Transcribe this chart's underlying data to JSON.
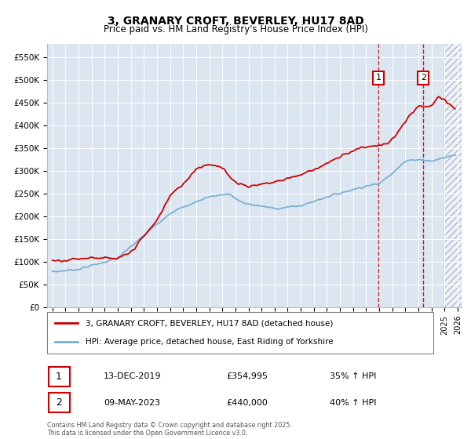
{
  "title": "3, GRANARY CROFT, BEVERLEY, HU17 8AD",
  "subtitle": "Price paid vs. HM Land Registry's House Price Index (HPI)",
  "ylim": [
    0,
    580000
  ],
  "yticks": [
    0,
    50000,
    100000,
    150000,
    200000,
    250000,
    300000,
    350000,
    400000,
    450000,
    500000,
    550000
  ],
  "ytick_labels": [
    "£0",
    "£50K",
    "£100K",
    "£150K",
    "£200K",
    "£250K",
    "£300K",
    "£350K",
    "£400K",
    "£450K",
    "£500K",
    "£550K"
  ],
  "background_color": "#ffffff",
  "plot_bg_color": "#dce6f1",
  "grid_color": "#ffffff",
  "hpi_line_color": "#7bafd4",
  "price_line_color": "#cc0000",
  "sale1_date": "13-DEC-2019",
  "sale1_price": "£354,995",
  "sale1_hpi": "35% ↑ HPI",
  "sale2_date": "09-MAY-2023",
  "sale2_price": "£440,000",
  "sale2_hpi": "40% ↑ HPI",
  "legend_label1": "3, GRANARY CROFT, BEVERLEY, HU17 8AD (detached house)",
  "legend_label2": "HPI: Average price, detached house, East Riding of Yorkshire",
  "footer": "Contains HM Land Registry data © Crown copyright and database right 2025.\nThis data is licensed under the Open Government Licence v3.0.",
  "hatch_region_start": 2025.0,
  "hatch_region_end": 2026.3,
  "vline1_x": 2019.95,
  "vline2_x": 2023.37,
  "marker1_y": 505000,
  "marker2_y": 505000,
  "xlim_left": 1994.6,
  "xlim_right": 2026.3
}
